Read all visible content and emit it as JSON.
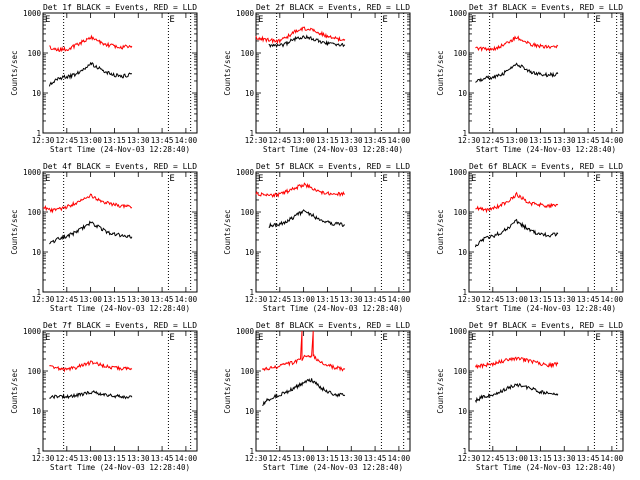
{
  "chart_data": [
    {
      "type": "line",
      "title": "Det 1f  BLACK = Events, RED = LLD",
      "xlabel": "Start Time (24-Nov-03 12:28:40)",
      "ylabel": "Counts/sec",
      "x_ticks": [
        "12:30",
        "12:45",
        "13:00",
        "13:15",
        "13:30",
        "13:45",
        "14:00"
      ],
      "y_ticks": [
        "1",
        "10",
        "100",
        "1000"
      ],
      "ylim": [
        1,
        1000
      ],
      "xlim": [
        "12:30",
        "14:07"
      ],
      "marker_label": "E",
      "series": [
        {
          "color": "#ff0000",
          "x": [
            "12:34",
            "12:40",
            "12:45",
            "12:50",
            "12:55",
            "13:00",
            "13:05",
            "13:10",
            "13:15",
            "13:20",
            "13:26"
          ],
          "y": [
            140,
            120,
            125,
            150,
            190,
            250,
            200,
            160,
            150,
            140,
            150
          ]
        },
        {
          "color": "#000000",
          "x": [
            "12:34",
            "12:40",
            "12:45",
            "12:50",
            "12:55",
            "13:00",
            "13:05",
            "13:10",
            "13:15",
            "13:20",
            "13:26"
          ],
          "y": [
            16,
            24,
            25,
            28,
            38,
            55,
            42,
            32,
            28,
            26,
            30
          ]
        }
      ]
    },
    {
      "type": "line",
      "title": "Det 2f  BLACK = Events, RED = LLD",
      "xlabel": "Start Time (24-Nov-03 12:28:40)",
      "ylabel": "Counts/sec",
      "x_ticks": [
        "12:30",
        "12:45",
        "13:00",
        "13:15",
        "13:30",
        "13:45",
        "14:00"
      ],
      "y_ticks": [
        "1",
        "10",
        "100",
        "1000"
      ],
      "ylim": [
        1,
        1000
      ],
      "xlim": [
        "12:30",
        "14:07"
      ],
      "marker_label": "E",
      "series": [
        {
          "color": "#ff0000",
          "x": [
            "12:30",
            "12:38",
            "12:45",
            "12:50",
            "12:55",
            "13:00",
            "13:05",
            "13:10",
            "13:15",
            "13:20",
            "13:26"
          ],
          "y": [
            240,
            210,
            200,
            260,
            360,
            420,
            380,
            320,
            260,
            230,
            220
          ]
        },
        {
          "color": "#000000",
          "x": [
            "12:38",
            "12:45",
            "12:50",
            "12:55",
            "13:00",
            "13:05",
            "13:10",
            "13:15",
            "13:20",
            "13:26"
          ],
          "y": [
            150,
            150,
            180,
            230,
            260,
            230,
            200,
            170,
            160,
            160
          ]
        }
      ]
    },
    {
      "type": "line",
      "title": "Det 3f  BLACK = Events, RED = LLD",
      "xlabel": "Start Time (24-Nov-03 12:28:40)",
      "ylabel": "Counts/sec",
      "x_ticks": [
        "12:30",
        "12:45",
        "13:00",
        "13:15",
        "13:30",
        "13:45",
        "14:00"
      ],
      "y_ticks": [
        "1",
        "10",
        "100",
        "1000"
      ],
      "ylim": [
        1,
        1000
      ],
      "xlim": [
        "12:30",
        "14:07"
      ],
      "marker_label": "E",
      "series": [
        {
          "color": "#ff0000",
          "x": [
            "12:34",
            "12:40",
            "12:45",
            "12:50",
            "12:55",
            "13:00",
            "13:05",
            "13:10",
            "13:15",
            "13:20",
            "13:26"
          ],
          "y": [
            130,
            125,
            120,
            150,
            190,
            250,
            200,
            160,
            150,
            140,
            150
          ]
        },
        {
          "color": "#000000",
          "x": [
            "12:34",
            "12:40",
            "12:45",
            "12:50",
            "12:55",
            "13:00",
            "13:05",
            "13:10",
            "13:15",
            "13:20",
            "13:26"
          ],
          "y": [
            18,
            24,
            25,
            28,
            38,
            55,
            42,
            32,
            30,
            28,
            30
          ]
        }
      ]
    },
    {
      "type": "line",
      "title": "Det 4f  BLACK = Events, RED = LLD",
      "xlabel": "Start Time (24-Nov-03 12:28:40)",
      "ylabel": "Counts/sec",
      "x_ticks": [
        "12:30",
        "12:45",
        "13:00",
        "13:15",
        "13:30",
        "13:45",
        "14:00"
      ],
      "y_ticks": [
        "1",
        "10",
        "100",
        "1000"
      ],
      "ylim": [
        1,
        1000
      ],
      "xlim": [
        "12:30",
        "14:07"
      ],
      "marker_label": "E",
      "series": [
        {
          "color": "#ff0000",
          "x": [
            "12:30",
            "12:36",
            "12:42",
            "12:48",
            "12:54",
            "13:00",
            "13:05",
            "13:10",
            "13:15",
            "13:20",
            "13:26"
          ],
          "y": [
            130,
            110,
            120,
            150,
            190,
            260,
            200,
            170,
            150,
            140,
            130
          ]
        },
        {
          "color": "#000000",
          "x": [
            "12:34",
            "12:40",
            "12:45",
            "12:50",
            "12:55",
            "13:00",
            "13:05",
            "13:10",
            "13:15",
            "13:20",
            "13:26"
          ],
          "y": [
            16,
            22,
            25,
            30,
            40,
            55,
            42,
            32,
            28,
            26,
            24
          ]
        }
      ]
    },
    {
      "type": "line",
      "title": "Det 5f  BLACK = Events, RED = LLD",
      "xlabel": "Start Time (24-Nov-03 12:28:40)",
      "ylabel": "Counts/sec",
      "x_ticks": [
        "12:30",
        "12:45",
        "13:00",
        "13:15",
        "13:30",
        "13:45",
        "14:00"
      ],
      "y_ticks": [
        "1",
        "10",
        "100",
        "1000"
      ],
      "ylim": [
        1,
        1000
      ],
      "xlim": [
        "12:30",
        "14:07"
      ],
      "marker_label": "E",
      "series": [
        {
          "color": "#ff0000",
          "x": [
            "12:30",
            "12:38",
            "12:45",
            "12:50",
            "12:55",
            "13:00",
            "13:05",
            "13:10",
            "13:15",
            "13:20",
            "13:26"
          ],
          "y": [
            300,
            250,
            280,
            330,
            400,
            480,
            400,
            320,
            290,
            280,
            280
          ]
        },
        {
          "color": "#000000",
          "x": [
            "12:38",
            "12:45",
            "12:50",
            "12:55",
            "13:00",
            "13:05",
            "13:10",
            "13:15",
            "13:20",
            "13:26"
          ],
          "y": [
            45,
            50,
            60,
            80,
            105,
            85,
            65,
            55,
            50,
            48
          ]
        }
      ]
    },
    {
      "type": "line",
      "title": "Det 6f  BLACK = Events, RED = LLD",
      "xlabel": "Start Time (24-Nov-03 12:28:40)",
      "ylabel": "Counts/sec",
      "x_ticks": [
        "12:30",
        "12:45",
        "13:00",
        "13:15",
        "13:30",
        "13:45",
        "14:00"
      ],
      "y_ticks": [
        "1",
        "10",
        "100",
        "1000"
      ],
      "ylim": [
        1,
        1000
      ],
      "xlim": [
        "12:30",
        "14:07"
      ],
      "marker_label": "E",
      "series": [
        {
          "color": "#ff0000",
          "x": [
            "12:34",
            "12:40",
            "12:45",
            "12:50",
            "12:55",
            "13:00",
            "13:05",
            "13:10",
            "13:15",
            "13:20",
            "13:26"
          ],
          "y": [
            130,
            110,
            120,
            150,
            190,
            280,
            200,
            160,
            150,
            140,
            150
          ]
        },
        {
          "color": "#000000",
          "x": [
            "12:34",
            "12:40",
            "12:45",
            "12:50",
            "12:55",
            "13:00",
            "13:05",
            "13:10",
            "13:15",
            "13:20",
            "13:26"
          ],
          "y": [
            14,
            22,
            25,
            30,
            40,
            60,
            42,
            32,
            28,
            26,
            28
          ]
        }
      ]
    },
    {
      "type": "line",
      "title": "Det 7f  BLACK = Events, RED = LLD",
      "xlabel": "Start Time (24-Nov-03 12:28:40)",
      "ylabel": "Counts/sec",
      "x_ticks": [
        "12:30",
        "12:45",
        "13:00",
        "13:15",
        "13:30",
        "13:45",
        "14:00"
      ],
      "y_ticks": [
        "1",
        "10",
        "100",
        "1000"
      ],
      "ylim": [
        1,
        1000
      ],
      "xlim": [
        "12:30",
        "14:07"
      ],
      "marker_label": "E",
      "series": [
        {
          "color": "#ff0000",
          "x": [
            "12:34",
            "12:40",
            "12:45",
            "12:50",
            "12:55",
            "13:00",
            "13:05",
            "13:10",
            "13:15",
            "13:20",
            "13:26"
          ],
          "y": [
            125,
            115,
            110,
            120,
            140,
            160,
            150,
            130,
            120,
            115,
            110
          ]
        },
        {
          "color": "#000000",
          "x": [
            "12:34",
            "12:40",
            "12:45",
            "12:50",
            "12:55",
            "13:00",
            "13:05",
            "13:10",
            "13:15",
            "13:20",
            "13:26"
          ],
          "y": [
            22,
            24,
            22,
            24,
            26,
            30,
            28,
            26,
            24,
            22,
            22
          ]
        }
      ]
    },
    {
      "type": "line",
      "title": "Det 8f  BLACK = Events, RED = LLD",
      "xlabel": "Start Time (24-Nov-03 12:28:40)",
      "ylabel": "Counts/sec",
      "x_ticks": [
        "12:30",
        "12:45",
        "13:00",
        "13:15",
        "13:30",
        "13:45",
        "14:00"
      ],
      "y_ticks": [
        "1",
        "10",
        "100",
        "1000"
      ],
      "ylim": [
        1,
        1000
      ],
      "xlim": [
        "12:30",
        "14:07"
      ],
      "marker_label": "E",
      "series": [
        {
          "color": "#ff0000",
          "x": [
            "12:34",
            "12:40",
            "12:45",
            "12:50",
            "12:55",
            "12:58",
            "12:59",
            "12:59",
            "13:00",
            "13:05",
            "13:06",
            "13:06",
            "13:07",
            "13:10",
            "13:15",
            "13:20",
            "13:26"
          ],
          "y": [
            110,
            120,
            130,
            150,
            170,
            200,
            1000,
            200,
            220,
            240,
            1000,
            250,
            220,
            170,
            140,
            120,
            110
          ]
        },
        {
          "color": "#000000",
          "x": [
            "12:34",
            "12:40",
            "12:45",
            "12:50",
            "12:55",
            "13:00",
            "13:05",
            "13:10",
            "13:15",
            "13:20",
            "13:26"
          ],
          "y": [
            15,
            22,
            25,
            30,
            40,
            50,
            60,
            40,
            30,
            25,
            25
          ]
        }
      ]
    },
    {
      "type": "line",
      "title": "Det 9f  BLACK = Events, RED = LLD",
      "xlabel": "Start Time (24-Nov-03 12:28:40)",
      "ylabel": "Counts/sec",
      "x_ticks": [
        "12:30",
        "12:45",
        "13:00",
        "13:15",
        "13:30",
        "13:45",
        "14:00"
      ],
      "y_ticks": [
        "1",
        "10",
        "100",
        "1000"
      ],
      "ylim": [
        1,
        1000
      ],
      "xlim": [
        "12:30",
        "14:07"
      ],
      "marker_label": "E",
      "series": [
        {
          "color": "#ff0000",
          "x": [
            "12:34",
            "12:40",
            "12:45",
            "12:50",
            "12:55",
            "13:00",
            "13:05",
            "13:10",
            "13:15",
            "13:20",
            "13:26"
          ],
          "y": [
            130,
            140,
            150,
            170,
            190,
            200,
            190,
            170,
            150,
            140,
            150
          ]
        },
        {
          "color": "#000000",
          "x": [
            "12:34",
            "12:40",
            "12:45",
            "12:50",
            "12:55",
            "13:00",
            "13:05",
            "13:10",
            "13:15",
            "13:20",
            "13:26"
          ],
          "y": [
            18,
            24,
            25,
            30,
            38,
            45,
            42,
            35,
            30,
            28,
            27
          ]
        }
      ]
    }
  ]
}
